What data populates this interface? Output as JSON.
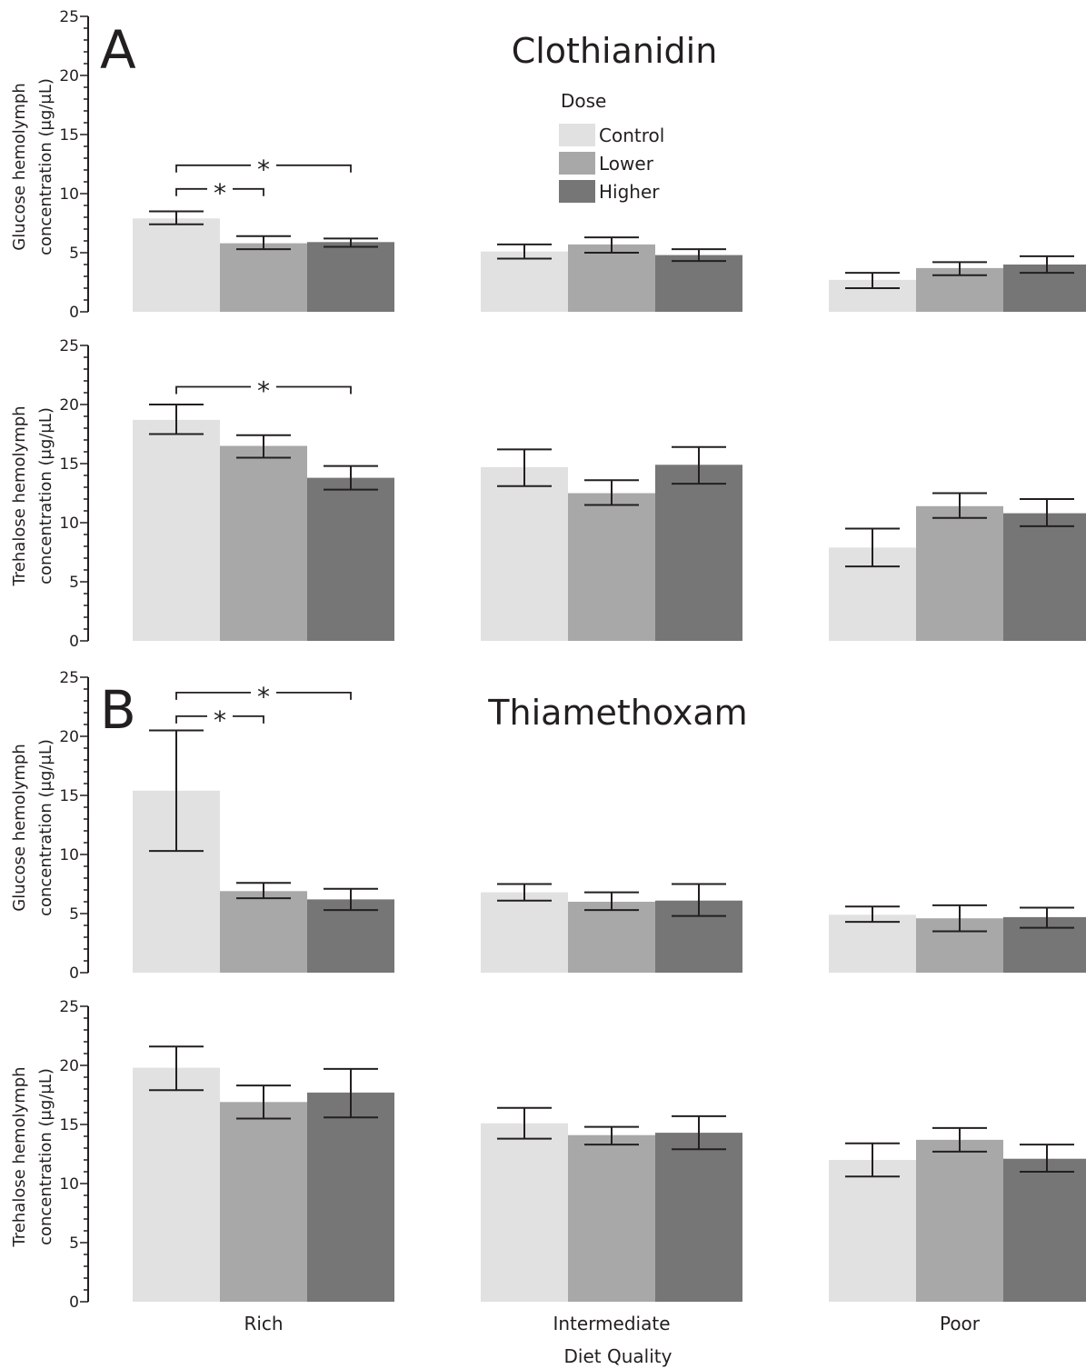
{
  "figure": {
    "panel_labels": [
      "A",
      "B"
    ],
    "panel_titles": [
      "Clothianidin",
      "Thiamethoxam"
    ],
    "legend_title": "Dose",
    "legend_items": [
      "Control",
      "Lower",
      "Higher"
    ],
    "x_axis_title": "Diet Quality"
  },
  "colors": {
    "Control": "#e1e1e1",
    "Lower": "#a8a8a8",
    "Higher": "#767676",
    "axis": "#231f20"
  },
  "chart_data": [
    {
      "type": "bar",
      "panel": "A",
      "title": "Clothianidin",
      "xlabel": "",
      "ylabel": "Glucose hemolymph concentration (μg/μL)",
      "ylim": [
        0,
        25
      ],
      "yticks": [
        0,
        5,
        10,
        15,
        20,
        25
      ],
      "categories": [
        "Rich",
        "Intermediate",
        "Poor"
      ],
      "show_category_labels": false,
      "legend": {
        "title": "Dose",
        "position": "top-center"
      },
      "series": [
        {
          "name": "Control",
          "values": [
            7.9,
            5.1,
            2.7
          ],
          "err_low": [
            7.4,
            4.5,
            2.0
          ],
          "err_high": [
            8.5,
            5.7,
            3.3
          ]
        },
        {
          "name": "Lower",
          "values": [
            5.8,
            5.7,
            3.7
          ],
          "err_low": [
            5.3,
            5.0,
            3.1
          ],
          "err_high": [
            6.4,
            6.3,
            4.2
          ]
        },
        {
          "name": "Higher",
          "values": [
            5.9,
            4.8,
            4.0
          ],
          "err_low": [
            5.5,
            4.3,
            3.3
          ],
          "err_high": [
            6.2,
            5.3,
            4.7
          ]
        }
      ],
      "significance": [
        {
          "category": "Rich",
          "from": "Control",
          "to": "Higher",
          "label": "*",
          "y": 12.4
        },
        {
          "category": "Rich",
          "from": "Control",
          "to": "Lower",
          "label": "*",
          "y": 10.4
        }
      ]
    },
    {
      "type": "bar",
      "panel": "A",
      "title": "",
      "xlabel": "",
      "ylabel": "Trehalose hemolymph concentration (μg/μL)",
      "ylim": [
        0,
        25
      ],
      "yticks": [
        0,
        5,
        10,
        15,
        20,
        25
      ],
      "categories": [
        "Rich",
        "Intermediate",
        "Poor"
      ],
      "show_category_labels": false,
      "series": [
        {
          "name": "Control",
          "values": [
            18.7,
            14.7,
            7.9
          ],
          "err_low": [
            17.5,
            13.1,
            6.3
          ],
          "err_high": [
            20.0,
            16.2,
            9.5
          ]
        },
        {
          "name": "Lower",
          "values": [
            16.5,
            12.5,
            11.4
          ],
          "err_low": [
            15.5,
            11.5,
            10.4
          ],
          "err_high": [
            17.4,
            13.6,
            12.5
          ]
        },
        {
          "name": "Higher",
          "values": [
            13.8,
            14.9,
            10.8
          ],
          "err_low": [
            12.8,
            13.3,
            9.7
          ],
          "err_high": [
            14.8,
            16.4,
            12.0
          ]
        }
      ],
      "significance": [
        {
          "category": "Rich",
          "from": "Control",
          "to": "Higher",
          "label": "*",
          "y": 21.5
        }
      ]
    },
    {
      "type": "bar",
      "panel": "B",
      "title": "Thiamethoxam",
      "xlabel": "",
      "ylabel": "Glucose hemolymph concentration (μg/μL)",
      "ylim": [
        0,
        25
      ],
      "yticks": [
        0,
        5,
        10,
        15,
        20,
        25
      ],
      "categories": [
        "Rich",
        "Intermediate",
        "Poor"
      ],
      "show_category_labels": false,
      "series": [
        {
          "name": "Control",
          "values": [
            15.4,
            6.8,
            4.9
          ],
          "err_low": [
            10.3,
            6.1,
            4.3
          ],
          "err_high": [
            20.5,
            7.5,
            5.6
          ]
        },
        {
          "name": "Lower",
          "values": [
            6.9,
            6.0,
            4.6
          ],
          "err_low": [
            6.3,
            5.3,
            3.5
          ],
          "err_high": [
            7.6,
            6.8,
            5.7
          ]
        },
        {
          "name": "Higher",
          "values": [
            6.2,
            6.1,
            4.7
          ],
          "err_low": [
            5.3,
            4.8,
            3.8
          ],
          "err_high": [
            7.1,
            7.5,
            5.5
          ]
        }
      ],
      "significance": [
        {
          "category": "Rich",
          "from": "Control",
          "to": "Higher",
          "label": "*",
          "y": 23.7
        },
        {
          "category": "Rich",
          "from": "Control",
          "to": "Lower",
          "label": "*",
          "y": 21.7
        }
      ]
    },
    {
      "type": "bar",
      "panel": "B",
      "title": "",
      "xlabel": "Diet Quality",
      "ylabel": "Trehalose hemolymph concentration (μg/μL)",
      "ylim": [
        0,
        25
      ],
      "yticks": [
        0,
        5,
        10,
        15,
        20,
        25
      ],
      "categories": [
        "Rich",
        "Intermediate",
        "Poor"
      ],
      "show_category_labels": true,
      "series": [
        {
          "name": "Control",
          "values": [
            19.8,
            15.1,
            12.0
          ],
          "err_low": [
            17.9,
            13.8,
            10.6
          ],
          "err_high": [
            21.6,
            16.4,
            13.4
          ]
        },
        {
          "name": "Lower",
          "values": [
            16.9,
            14.1,
            13.7
          ],
          "err_low": [
            15.5,
            13.3,
            12.7
          ],
          "err_high": [
            18.3,
            14.8,
            14.7
          ]
        },
        {
          "name": "Higher",
          "values": [
            17.7,
            14.3,
            12.1
          ],
          "err_low": [
            15.6,
            12.9,
            11.0
          ],
          "err_high": [
            19.7,
            15.7,
            13.3
          ]
        }
      ],
      "significance": []
    }
  ]
}
